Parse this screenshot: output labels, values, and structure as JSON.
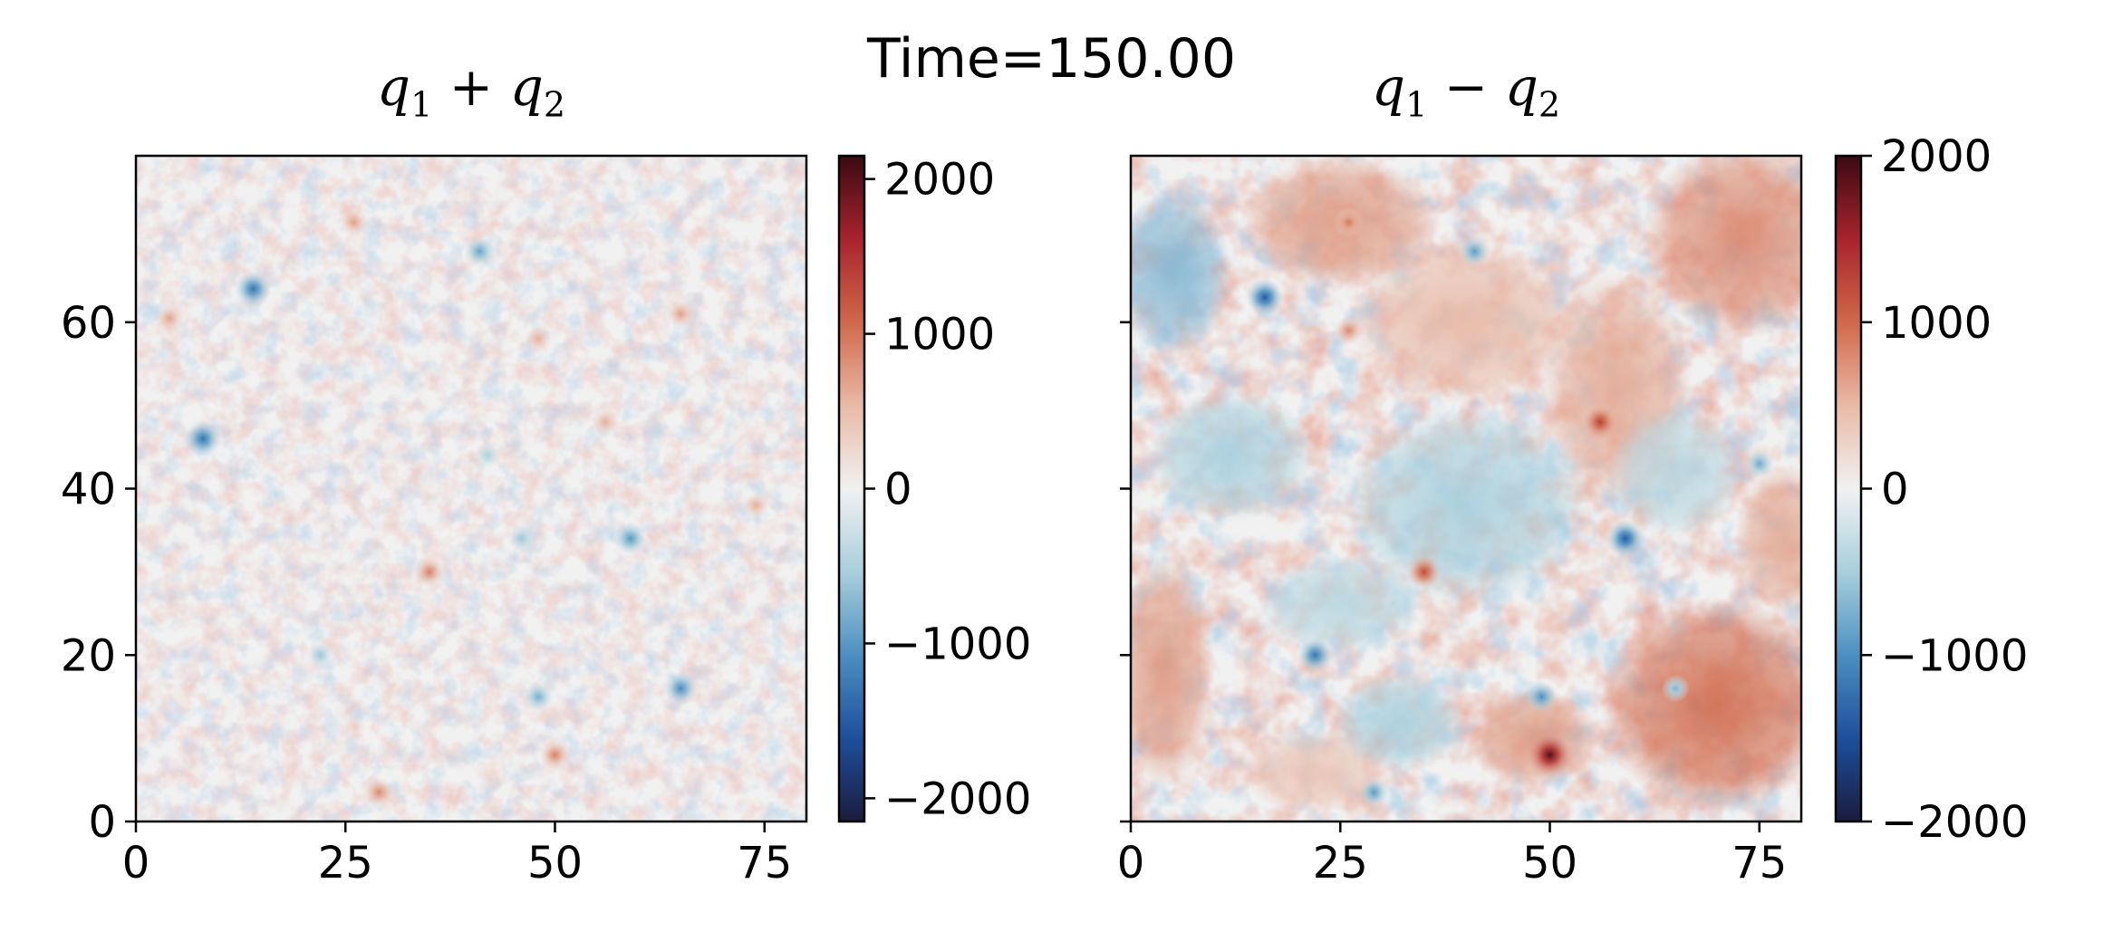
{
  "chart_data": {
    "title": "Time=150.00",
    "panels": [
      {
        "type": "heatmap",
        "title": "q₁ + q₂",
        "title_parts": {
          "sym": "q",
          "s1": "1",
          "op": " + ",
          "s2": "2"
        },
        "xlim": [
          0,
          80
        ],
        "ylim": [
          0,
          80
        ],
        "xticks": [
          0,
          25,
          50,
          75
        ],
        "yticks": [
          0,
          20,
          40,
          60
        ],
        "ytick_labels_visible": true,
        "colorbar": {
          "range": [
            -2150,
            2150
          ],
          "ticks": [
            2000,
            1000,
            0,
            -1000,
            -2000
          ],
          "tick_labels": [
            "2000",
            "1000",
            "0",
            "−1000",
            "−2000"
          ]
        },
        "colormap": [
          "#1b1c3e",
          "#1d4f9c",
          "#4c8fc0",
          "#a8cfdc",
          "#f1f1f1",
          "#e8b9a6",
          "#d0684a",
          "#a8232d",
          "#3b0a13"
        ],
        "vortices": [
          {
            "x": 35,
            "y": 30,
            "v": 900
          },
          {
            "x": 50,
            "y": 8,
            "v": 900
          },
          {
            "x": 29,
            "y": 3.5,
            "v": 850
          },
          {
            "x": 4,
            "y": 60.5,
            "v": 700
          },
          {
            "x": 26,
            "y": 72,
            "v": 700
          },
          {
            "x": 48,
            "y": 58,
            "v": 600
          },
          {
            "x": 65,
            "y": 61,
            "v": 700
          },
          {
            "x": 56,
            "y": 48,
            "v": 600
          },
          {
            "x": 74,
            "y": 38,
            "v": 600
          },
          {
            "x": 14,
            "y": 64,
            "v": -1300
          },
          {
            "x": 8,
            "y": 46,
            "v": -1300
          },
          {
            "x": 65,
            "y": 16,
            "v": -1100
          },
          {
            "x": 59,
            "y": 34,
            "v": -1000
          },
          {
            "x": 41,
            "y": 68.5,
            "v": -900
          },
          {
            "x": 48,
            "y": 15,
            "v": -800
          },
          {
            "x": 22,
            "y": 20,
            "v": -600
          },
          {
            "x": 46,
            "y": 34,
            "v": -600
          },
          {
            "x": 42,
            "y": 44,
            "v": -500
          }
        ]
      },
      {
        "type": "heatmap",
        "title": "q₁ − q₂",
        "title_parts": {
          "sym": "q",
          "s1": "1",
          "op": " − ",
          "s2": "2"
        },
        "xlim": [
          0,
          80
        ],
        "ylim": [
          0,
          80
        ],
        "xticks": [
          0,
          25,
          50,
          75
        ],
        "yticks": [
          0,
          20,
          40,
          60
        ],
        "ytick_labels_visible": false,
        "colorbar": {
          "range": [
            -2000,
            2000
          ],
          "ticks": [
            2000,
            1000,
            0,
            -1000,
            -2000
          ],
          "tick_labels": [
            "2000",
            "1000",
            "0",
            "−1000",
            "−2000"
          ]
        },
        "colormap": [
          "#1b1c3e",
          "#1d4f9c",
          "#4c8fc0",
          "#a8cfdc",
          "#f1f1f1",
          "#e8b9a6",
          "#d0684a",
          "#a8232d",
          "#3b0a13"
        ],
        "vortices": [
          {
            "x": 50,
            "y": 8,
            "v": 1900
          },
          {
            "x": 56,
            "y": 48,
            "v": 1300
          },
          {
            "x": 35,
            "y": 30,
            "v": 1200
          },
          {
            "x": 26,
            "y": 72,
            "v": 900
          },
          {
            "x": 26,
            "y": 59,
            "v": 800
          },
          {
            "x": 16,
            "y": 63,
            "v": -1400
          },
          {
            "x": 59,
            "y": 34,
            "v": -1400
          },
          {
            "x": 22,
            "y": 20,
            "v": -1200
          },
          {
            "x": 49,
            "y": 15,
            "v": -1000
          },
          {
            "x": 29,
            "y": 3.5,
            "v": -900
          },
          {
            "x": 65,
            "y": 16,
            "v": -700
          },
          {
            "x": 41,
            "y": 68.5,
            "v": -900
          },
          {
            "x": 75,
            "y": 43,
            "v": -800
          }
        ],
        "regions": [
          {
            "x": 70,
            "y": 14,
            "rx": 14,
            "ry": 13,
            "v": 1000
          },
          {
            "x": 73,
            "y": 70,
            "rx": 12,
            "ry": 12,
            "v": 800
          },
          {
            "x": 25,
            "y": 72,
            "rx": 12,
            "ry": 8,
            "v": 700
          },
          {
            "x": 58,
            "y": 52,
            "rx": 9,
            "ry": 14,
            "v": 600
          },
          {
            "x": 40,
            "y": 60,
            "rx": 14,
            "ry": 10,
            "v": 500
          },
          {
            "x": 4,
            "y": 18,
            "rx": 6,
            "ry": 14,
            "v": 700
          },
          {
            "x": 78,
            "y": 34,
            "rx": 6,
            "ry": 9,
            "v": 600
          },
          {
            "x": 48,
            "y": 10,
            "rx": 8,
            "ry": 6,
            "v": 700
          },
          {
            "x": 22,
            "y": 6,
            "rx": 9,
            "ry": 5,
            "v": 400
          },
          {
            "x": 5,
            "y": 66,
            "rx": 7,
            "ry": 10,
            "v": -700
          },
          {
            "x": 40,
            "y": 38,
            "rx": 15,
            "ry": 12,
            "v": -500
          },
          {
            "x": 12,
            "y": 44,
            "rx": 10,
            "ry": 8,
            "v": -500
          },
          {
            "x": 25,
            "y": 26,
            "rx": 10,
            "ry": 6,
            "v": -400
          },
          {
            "x": 65,
            "y": 42,
            "rx": 8,
            "ry": 8,
            "v": -400
          },
          {
            "x": 32,
            "y": 12,
            "rx": 8,
            "ry": 6,
            "v": -500
          }
        ]
      }
    ]
  }
}
